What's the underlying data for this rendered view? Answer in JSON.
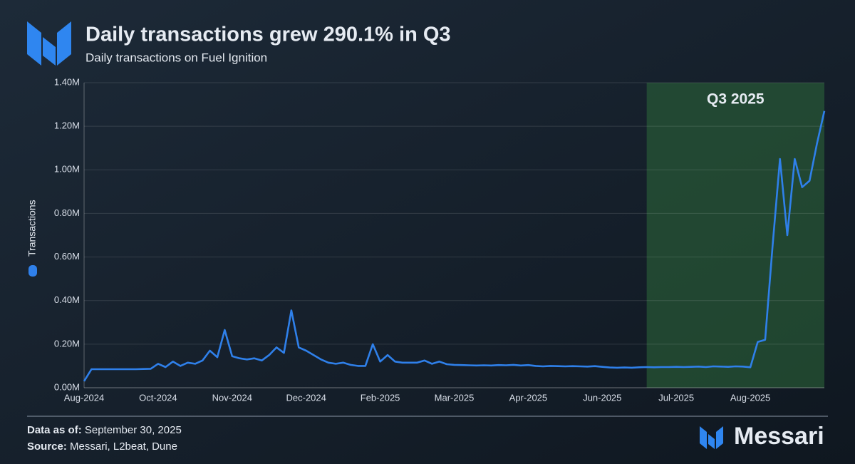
{
  "chart_data": {
    "type": "line",
    "title": "Daily transactions grew 290.1% in Q3",
    "subtitle": "Daily transactions on Fuel Ignition",
    "y_label": "Transactions",
    "categories": [
      "Aug-2024",
      null,
      null,
      null,
      null,
      null,
      null,
      null,
      null,
      null,
      "Oct-2024",
      null,
      null,
      null,
      null,
      null,
      null,
      null,
      null,
      null,
      "Nov-2024",
      null,
      null,
      null,
      null,
      null,
      null,
      null,
      null,
      null,
      "Dec-2024",
      null,
      null,
      null,
      null,
      null,
      null,
      null,
      null,
      null,
      "Feb-2025",
      null,
      null,
      null,
      null,
      null,
      null,
      null,
      null,
      null,
      "Mar-2025",
      null,
      null,
      null,
      null,
      null,
      null,
      null,
      null,
      null,
      "Apr-2025",
      null,
      null,
      null,
      null,
      null,
      null,
      null,
      null,
      null,
      "Jun-2025",
      null,
      null,
      null,
      null,
      null,
      null,
      null,
      null,
      null,
      "Jul-2025",
      null,
      null,
      null,
      null,
      null,
      null,
      null,
      null,
      null,
      "Aug-2025",
      null,
      null,
      null,
      null,
      null,
      null,
      null,
      null,
      null,
      null
    ],
    "series": [
      {
        "name": "Transactions",
        "color": "#2f80ea",
        "values": [
          30000,
          85000,
          85000,
          85000,
          85000,
          85000,
          85000,
          85000,
          86000,
          87000,
          110000,
          95000,
          120000,
          100000,
          115000,
          110000,
          125000,
          170000,
          140000,
          265000,
          145000,
          135000,
          130000,
          135000,
          125000,
          150000,
          185000,
          160000,
          355000,
          185000,
          170000,
          150000,
          130000,
          115000,
          110000,
          115000,
          105000,
          100000,
          100000,
          200000,
          120000,
          150000,
          120000,
          115000,
          115000,
          115000,
          125000,
          110000,
          120000,
          108000,
          105000,
          104000,
          103000,
          102000,
          103000,
          102000,
          104000,
          103000,
          105000,
          102000,
          104000,
          100000,
          98000,
          100000,
          99000,
          98000,
          99000,
          98000,
          97000,
          99000,
          96000,
          93000,
          92000,
          93000,
          92000,
          94000,
          95000,
          94000,
          95000,
          95000,
          96000,
          95000,
          96000,
          97000,
          95000,
          98000,
          97000,
          96000,
          98000,
          97000,
          94000,
          210000,
          220000,
          650000,
          1050000,
          700000,
          1050000,
          920000,
          950000,
          1120000,
          1270000
        ]
      }
    ],
    "ylim": [
      0,
      1400000
    ],
    "yticks": [
      {
        "value": 0,
        "label": "0.00M"
      },
      {
        "value": 200000,
        "label": "0.20M"
      },
      {
        "value": 400000,
        "label": "0.40M"
      },
      {
        "value": 600000,
        "label": "0.60M"
      },
      {
        "value": 800000,
        "label": "0.80M"
      },
      {
        "value": 1000000,
        "label": "1.00M"
      },
      {
        "value": 1200000,
        "label": "1.20M"
      },
      {
        "value": 1400000,
        "label": "1.40M"
      }
    ],
    "grid": true,
    "shaded_region": {
      "label": "Q3 2025",
      "from": 76,
      "to": 100,
      "color": "#2d6a3a"
    }
  },
  "footer": {
    "date_label": "Data as of:",
    "date": "September 30, 2025",
    "source_label": "Source:",
    "source": "Messari, L2beat, Dune",
    "brand": "Messari"
  }
}
